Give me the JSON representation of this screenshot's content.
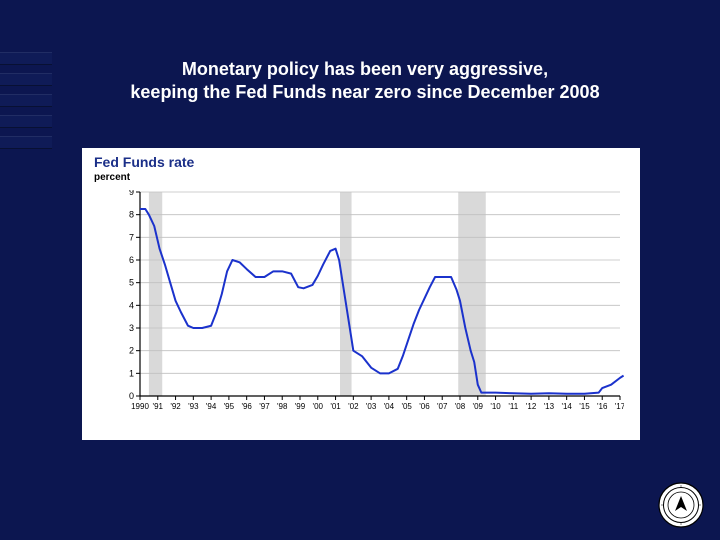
{
  "slide": {
    "background_color": "#0c1650",
    "accent_bar_color": "#0f1b57",
    "title_line1": "Monetary policy has been very aggressive,",
    "title_line2": "keeping the Fed Funds near zero since December 2008",
    "title_color": "#ffffff",
    "title_fontsize": 18
  },
  "chart": {
    "type": "line",
    "card_bg": "#ffffff",
    "title": "Fed Funds rate",
    "title_color": "#1b2f88",
    "title_fontsize": 14,
    "sub": "percent",
    "sub_color": "#000000",
    "sub_fontsize": 10,
    "axis_color": "#000000",
    "grid_color": "#bfbfbf",
    "recession_color": "#d9d9d9",
    "line_color": "#1b32cc",
    "line_width": 2,
    "tick_fontsize": 9,
    "y": {
      "min": 0,
      "max": 9,
      "step": 1
    },
    "x": {
      "labels": [
        "1990",
        "'91",
        "'92",
        "'93",
        "'94",
        "'95",
        "'96",
        "'97",
        "'98",
        "'99",
        "'00",
        "'01",
        "'02",
        "'03",
        "'04",
        "'05",
        "'06",
        "'07",
        "'08",
        "'09",
        "'10",
        "'11",
        "'12",
        "'13",
        "'14",
        "'15",
        "'16",
        "'17"
      ]
    },
    "recession_bands": [
      {
        "start": 0.5,
        "end": 1.25
      },
      {
        "start": 11.25,
        "end": 11.9
      },
      {
        "start": 17.9,
        "end": 19.45
      }
    ],
    "series": [
      {
        "t": 0.0,
        "v": 8.25
      },
      {
        "t": 0.3,
        "v": 8.25
      },
      {
        "t": 0.5,
        "v": 8.0
      },
      {
        "t": 0.8,
        "v": 7.5
      },
      {
        "t": 1.1,
        "v": 6.5
      },
      {
        "t": 1.4,
        "v": 5.8
      },
      {
        "t": 1.7,
        "v": 5.0
      },
      {
        "t": 2.0,
        "v": 4.2
      },
      {
        "t": 2.3,
        "v": 3.7
      },
      {
        "t": 2.7,
        "v": 3.1
      },
      {
        "t": 3.0,
        "v": 3.0
      },
      {
        "t": 3.5,
        "v": 3.0
      },
      {
        "t": 4.0,
        "v": 3.1
      },
      {
        "t": 4.3,
        "v": 3.7
      },
      {
        "t": 4.6,
        "v": 4.5
      },
      {
        "t": 4.9,
        "v": 5.5
      },
      {
        "t": 5.2,
        "v": 6.0
      },
      {
        "t": 5.6,
        "v": 5.9
      },
      {
        "t": 6.0,
        "v": 5.6
      },
      {
        "t": 6.5,
        "v": 5.25
      },
      {
        "t": 7.0,
        "v": 5.25
      },
      {
        "t": 7.5,
        "v": 5.5
      },
      {
        "t": 8.0,
        "v": 5.5
      },
      {
        "t": 8.5,
        "v": 5.4
      },
      {
        "t": 8.9,
        "v": 4.8
      },
      {
        "t": 9.2,
        "v": 4.75
      },
      {
        "t": 9.7,
        "v": 4.9
      },
      {
        "t": 10.0,
        "v": 5.3
      },
      {
        "t": 10.3,
        "v": 5.8
      },
      {
        "t": 10.7,
        "v": 6.4
      },
      {
        "t": 11.0,
        "v": 6.5
      },
      {
        "t": 11.2,
        "v": 6.0
      },
      {
        "t": 11.5,
        "v": 4.5
      },
      {
        "t": 11.8,
        "v": 3.0
      },
      {
        "t": 12.0,
        "v": 2.0
      },
      {
        "t": 12.5,
        "v": 1.75
      },
      {
        "t": 13.0,
        "v": 1.25
      },
      {
        "t": 13.5,
        "v": 1.0
      },
      {
        "t": 14.0,
        "v": 1.0
      },
      {
        "t": 14.5,
        "v": 1.2
      },
      {
        "t": 14.8,
        "v": 1.8
      },
      {
        "t": 15.1,
        "v": 2.5
      },
      {
        "t": 15.4,
        "v": 3.2
      },
      {
        "t": 15.7,
        "v": 3.8
      },
      {
        "t": 16.0,
        "v": 4.3
      },
      {
        "t": 16.3,
        "v": 4.8
      },
      {
        "t": 16.6,
        "v": 5.25
      },
      {
        "t": 17.0,
        "v": 5.25
      },
      {
        "t": 17.5,
        "v": 5.25
      },
      {
        "t": 17.8,
        "v": 4.7
      },
      {
        "t": 18.0,
        "v": 4.2
      },
      {
        "t": 18.3,
        "v": 3.0
      },
      {
        "t": 18.6,
        "v": 2.0
      },
      {
        "t": 18.8,
        "v": 1.5
      },
      {
        "t": 19.0,
        "v": 0.5
      },
      {
        "t": 19.2,
        "v": 0.15
      },
      {
        "t": 20.0,
        "v": 0.15
      },
      {
        "t": 21.0,
        "v": 0.12
      },
      {
        "t": 22.0,
        "v": 0.1
      },
      {
        "t": 23.0,
        "v": 0.12
      },
      {
        "t": 24.0,
        "v": 0.1
      },
      {
        "t": 25.0,
        "v": 0.1
      },
      {
        "t": 25.8,
        "v": 0.15
      },
      {
        "t": 26.0,
        "v": 0.35
      },
      {
        "t": 26.5,
        "v": 0.5
      },
      {
        "t": 27.0,
        "v": 0.8
      },
      {
        "t": 27.2,
        "v": 0.9
      }
    ]
  },
  "seal": {
    "outer": "#000000",
    "inner": "#ffffff",
    "ring_text_size": 3
  }
}
